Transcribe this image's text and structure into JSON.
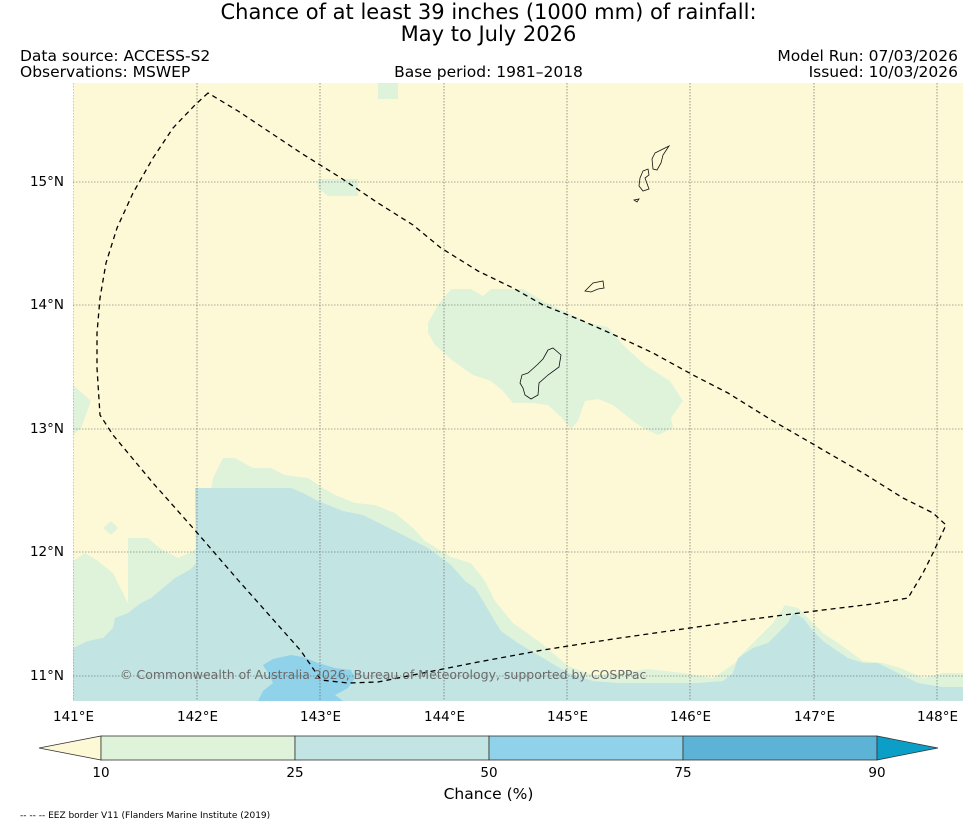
{
  "title": {
    "line1": "Chance of at least 39 inches (1000  mm) of rainfall:",
    "line2": "May to July 2026"
  },
  "header": {
    "data_source": "Data source: ACCESS-S2",
    "observations": "Observations: MSWEP",
    "base_period": "Base period: 1981–2018",
    "model_run": "Model Run: 07/03/2026",
    "issued": "Issued: 10/03/2026"
  },
  "map": {
    "lon_ticks": [
      "141°E",
      "142°E",
      "143°E",
      "144°E",
      "145°E",
      "146°E",
      "147°E",
      "148°E"
    ],
    "lat_ticks": [
      "15°N",
      "14°N",
      "13°N",
      "12°N",
      "11°N"
    ],
    "copyright": "© Commonwealth of Australia 2026, Bureau of Meteorology, supported by COSPPac",
    "colors": {
      "below_10": "#fdf9d6",
      "10_25": "#dff3db",
      "25_50": "#c2e4e2",
      "50_75": "#8fd2ea",
      "75_90": "#5cb3d6",
      "above_90": "#0b9fc8"
    }
  },
  "colorbar": {
    "labels": [
      "10",
      "25",
      "50",
      "75",
      "90"
    ],
    "title": "Chance (%)"
  },
  "footer": {
    "eez_note": "-- -- -- EEZ border V11 (Flanders Marine Institute (2019)"
  }
}
